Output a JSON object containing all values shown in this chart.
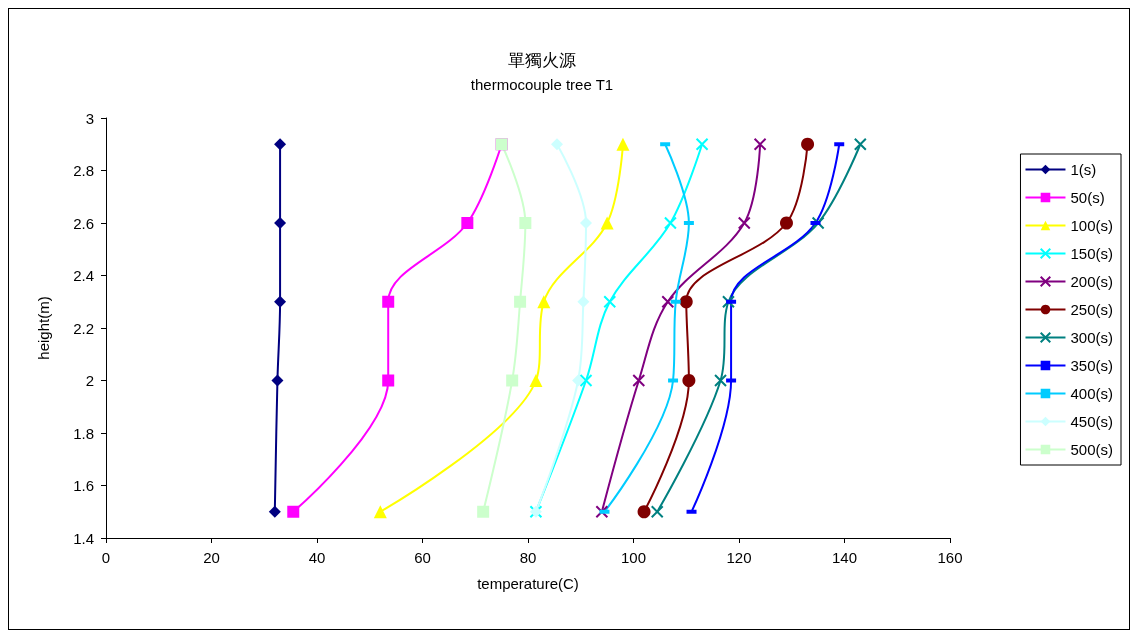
{
  "chart_data": {
    "type": "line",
    "title": "單獨火源",
    "subtitle": "thermocouple tree T1",
    "xlabel": "temperature(C)",
    "ylabel": "height(m)",
    "xlim": [
      0,
      160
    ],
    "xticks": [
      0,
      20,
      40,
      60,
      80,
      100,
      120,
      140,
      160
    ],
    "ylim": [
      1.4,
      3
    ],
    "yticks": [
      1.4,
      1.6,
      1.8,
      2,
      2.2,
      2.4,
      2.6,
      2.8,
      3
    ],
    "grid": false,
    "legend": "right",
    "series": [
      {
        "name": "1(s)",
        "color": "#000080",
        "marker": "diamond",
        "x": [
          33,
          33,
          33,
          32.5,
          32
        ],
        "values": [
          2.9,
          2.6,
          2.3,
          2,
          1.5
        ]
      },
      {
        "name": "50(s)",
        "color": "#ff00ff",
        "marker": "square",
        "x": [
          75,
          68.5,
          53.5,
          53.5,
          35.5
        ],
        "values": [
          2.9,
          2.6,
          2.3,
          2,
          1.5
        ]
      },
      {
        "name": "100(s)",
        "color": "#ffff00",
        "marker": "triangle",
        "x": [
          98,
          95,
          83,
          81.5,
          52
        ],
        "values": [
          2.9,
          2.6,
          2.3,
          2,
          1.5
        ]
      },
      {
        "name": "150(s)",
        "color": "#00ffff",
        "marker": "cross",
        "x": [
          113,
          107,
          95.5,
          91,
          81.5
        ],
        "values": [
          2.9,
          2.6,
          2.3,
          2,
          1.5
        ]
      },
      {
        "name": "200(s)",
        "color": "#800080",
        "marker": "cross",
        "x": [
          124,
          121,
          106.5,
          101,
          94
        ],
        "values": [
          2.9,
          2.6,
          2.3,
          2,
          1.5
        ]
      },
      {
        "name": "250(s)",
        "color": "#800000",
        "marker": "circle",
        "x": [
          133,
          129,
          110,
          110.5,
          102
        ],
        "values": [
          2.9,
          2.6,
          2.3,
          2,
          1.5
        ]
      },
      {
        "name": "300(s)",
        "color": "#008080",
        "marker": "cross",
        "x": [
          143,
          135,
          118,
          116.5,
          104.5
        ],
        "values": [
          2.9,
          2.6,
          2.3,
          2,
          1.5
        ]
      },
      {
        "name": "350(s)",
        "color": "#0000ff",
        "marker": "square",
        "x": [
          139,
          134.5,
          118.5,
          118.5,
          111
        ],
        "values": [
          2.9,
          2.6,
          2.3,
          2,
          1.5
        ]
      },
      {
        "name": "400(s)",
        "color": "#00ccff",
        "marker": "square",
        "x": [
          106,
          110.5,
          108,
          107.5,
          94.5
        ],
        "values": [
          2.9,
          2.6,
          2.3,
          2,
          1.5
        ]
      },
      {
        "name": "450(s)",
        "color": "#ccffff",
        "marker": "diamond",
        "x": [
          85.5,
          91,
          90.5,
          89.5,
          81.5
        ],
        "values": [
          2.9,
          2.6,
          2.3,
          2,
          1.5
        ]
      },
      {
        "name": "500(s)",
        "color": "#ccffcc",
        "marker": "square",
        "x": [
          75,
          79.5,
          78.5,
          77,
          71.5
        ],
        "values": [
          2.9,
          2.6,
          2.3,
          2,
          1.5
        ]
      }
    ]
  }
}
